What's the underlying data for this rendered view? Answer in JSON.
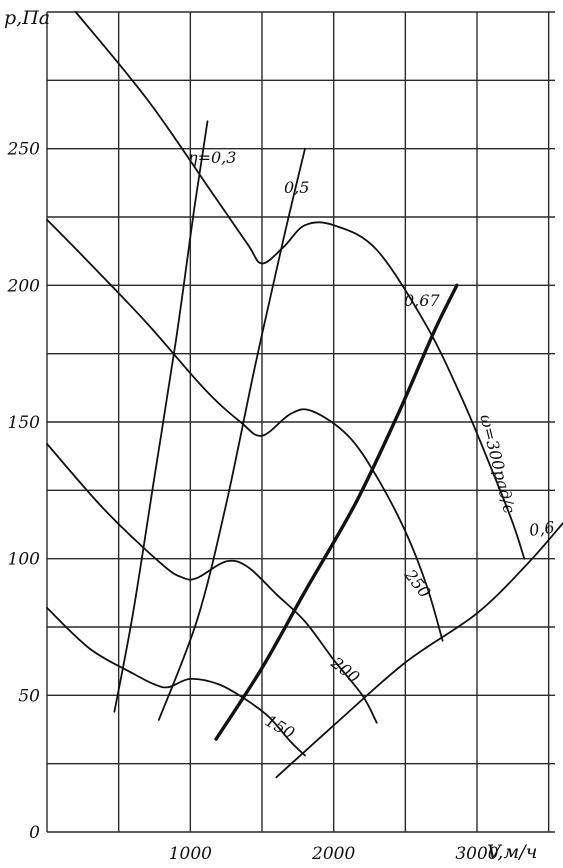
{
  "chart_data": {
    "type": "line",
    "xlabel": "V,м/ч",
    "ylabel": "p,Па",
    "xlim": [
      0,
      3600
    ],
    "ylim": [
      0,
      300
    ],
    "x_ticks": [
      1000,
      2000,
      3000
    ],
    "y_ticks": [
      0,
      50,
      100,
      150,
      200,
      250
    ],
    "grid": true,
    "series": [
      {
        "kind": "performance",
        "name": "ω=300рад/с",
        "points": [
          [
            200,
            300
          ],
          [
            700,
            268
          ],
          [
            1150,
            234
          ],
          [
            1400,
            215
          ],
          [
            1500,
            208
          ],
          [
            1650,
            214
          ],
          [
            1800,
            222
          ],
          [
            2000,
            222
          ],
          [
            2300,
            213
          ],
          [
            2650,
            185
          ],
          [
            2900,
            158
          ],
          [
            3100,
            133
          ],
          [
            3250,
            113
          ],
          [
            3330,
            100
          ]
        ]
      },
      {
        "kind": "performance",
        "name": "250",
        "points": [
          [
            0,
            224
          ],
          [
            300,
            208
          ],
          [
            700,
            186
          ],
          [
            1100,
            162
          ],
          [
            1350,
            150
          ],
          [
            1500,
            145
          ],
          [
            1700,
            153
          ],
          [
            1850,
            154
          ],
          [
            2100,
            145
          ],
          [
            2300,
            130
          ],
          [
            2500,
            110
          ],
          [
            2650,
            90
          ],
          [
            2760,
            70
          ]
        ]
      },
      {
        "kind": "performance",
        "name": "200",
        "points": [
          [
            0,
            142
          ],
          [
            400,
            118
          ],
          [
            800,
            98
          ],
          [
            950,
            93
          ],
          [
            1050,
            93
          ],
          [
            1250,
            99
          ],
          [
            1400,
            97
          ],
          [
            1600,
            87
          ],
          [
            1800,
            77
          ],
          [
            2000,
            63
          ],
          [
            2200,
            50
          ],
          [
            2300,
            40
          ]
        ]
      },
      {
        "kind": "performance",
        "name": "150",
        "points": [
          [
            0,
            82
          ],
          [
            300,
            67
          ],
          [
            600,
            58
          ],
          [
            750,
            54
          ],
          [
            850,
            53
          ],
          [
            1000,
            56
          ],
          [
            1200,
            54
          ],
          [
            1400,
            48
          ],
          [
            1550,
            42
          ],
          [
            1700,
            33
          ],
          [
            1800,
            28
          ]
        ]
      },
      {
        "kind": "efficiency",
        "name": "η=0,3",
        "points": [
          [
            470,
            44
          ],
          [
            600,
            80
          ],
          [
            750,
            130
          ],
          [
            900,
            180
          ],
          [
            1030,
            229
          ],
          [
            1120,
            260
          ]
        ]
      },
      {
        "kind": "efficiency",
        "name": "0,5",
        "points": [
          [
            780,
            41
          ],
          [
            1050,
            78
          ],
          [
            1250,
            120
          ],
          [
            1450,
            170
          ],
          [
            1650,
            217
          ],
          [
            1800,
            250
          ]
        ]
      },
      {
        "kind": "efficiency-bold",
        "name": "0,67",
        "points": [
          [
            1180,
            34
          ],
          [
            1500,
            60
          ],
          [
            1800,
            88
          ],
          [
            2150,
            120
          ],
          [
            2450,
            153
          ],
          [
            2700,
            183
          ],
          [
            2860,
            200
          ]
        ]
      },
      {
        "kind": "efficiency",
        "name": "0,6",
        "points": [
          [
            1600,
            20
          ],
          [
            2000,
            39
          ],
          [
            2500,
            62
          ],
          [
            3000,
            80
          ],
          [
            3350,
            98
          ],
          [
            3600,
            113
          ]
        ]
      }
    ]
  }
}
